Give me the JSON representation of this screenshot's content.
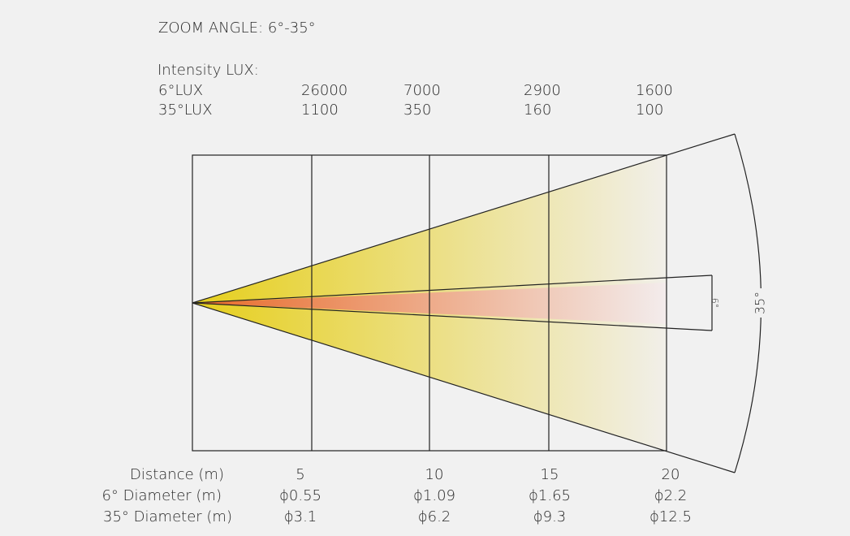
{
  "header": {
    "title": "ZOOM ANGLE: 6°-35°"
  },
  "intensity": {
    "title": "Intensity LUX:",
    "rows": [
      {
        "label": "6°LUX",
        "values": [
          "26000",
          "7000",
          "2900",
          "1600"
        ]
      },
      {
        "label": "35°LUX",
        "values": [
          "1100",
          "350",
          "160",
          "100"
        ]
      }
    ]
  },
  "distance_table": {
    "rows": [
      {
        "label": "Distance (m)",
        "values": [
          "5",
          "10",
          "15",
          "20"
        ]
      },
      {
        "label": "6° Diameter (m)",
        "values": [
          "ϕ0.55",
          "ϕ1.09",
          "ϕ1.65",
          "ϕ2.2"
        ]
      },
      {
        "label": "35° Diameter (m)",
        "values": [
          "ϕ3.1",
          "ϕ6.2",
          "ϕ9.3",
          "ϕ12.5"
        ]
      }
    ]
  },
  "beam_labels": {
    "narrow": "6°",
    "wide": "35°"
  }
}
